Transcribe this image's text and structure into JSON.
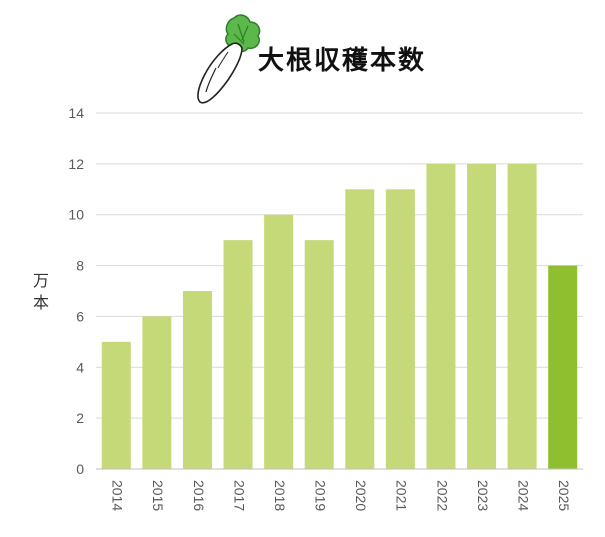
{
  "chart_data": {
    "type": "bar",
    "title": "大根収穫本数",
    "ylabel": "万本",
    "xlabel": "",
    "categories": [
      "2014",
      "2015",
      "2016",
      "2017",
      "2018",
      "2019",
      "2020",
      "2021",
      "2022",
      "2023",
      "2024",
      "2025"
    ],
    "values": [
      5,
      6,
      7,
      9,
      10,
      9,
      11,
      11,
      12,
      12,
      12,
      8
    ],
    "ylim": [
      0,
      14
    ],
    "yticks": [
      0,
      2,
      4,
      6,
      8,
      10,
      12,
      14
    ],
    "grid": true,
    "colors": {
      "bar": "#c5d978",
      "highlight": "#8fbf2e",
      "grid": "#d9d9d9",
      "axis": "#bfbfbf"
    },
    "highlight_index": 11
  },
  "decoration": {
    "icon": "radish-icon"
  }
}
